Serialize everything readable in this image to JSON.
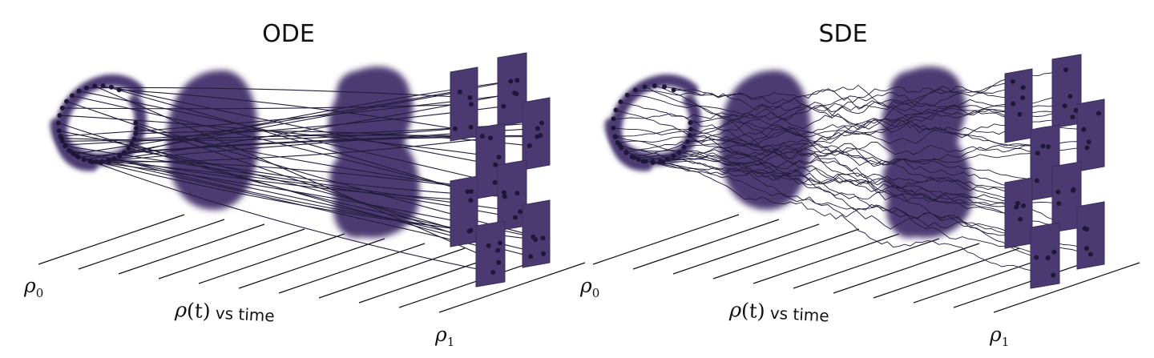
{
  "panels": [
    {
      "title": "ODE",
      "rho0": {
        "sym": "ρ",
        "sub": "0"
      },
      "rhot": {
        "sym": "ρ",
        "arg": "(t)",
        "suffix": " vs time"
      },
      "rho1": {
        "sym": "ρ",
        "sub": "1"
      }
    },
    {
      "title": "SDE",
      "rho0": {
        "sym": "ρ",
        "sub": "0"
      },
      "rhot": {
        "sym": "ρ",
        "arg": "(t)",
        "suffix": " vs time"
      },
      "rho1": {
        "sym": "ρ",
        "sub": "1"
      }
    }
  ],
  "colors": {
    "mass": "#4b3a72",
    "dot": "#1e1838",
    "path": "#231d3d",
    "axis": "#111111"
  }
}
